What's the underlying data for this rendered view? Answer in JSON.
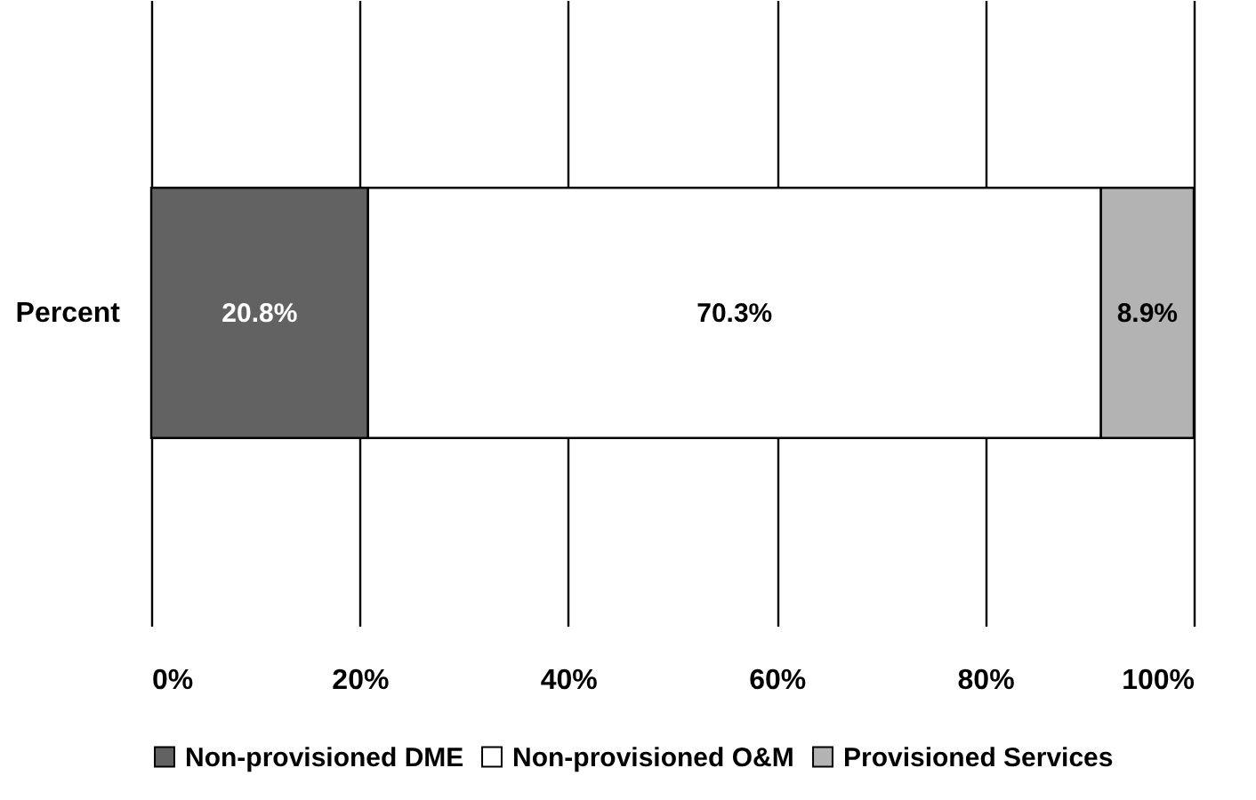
{
  "chart_data": {
    "type": "bar",
    "orientation": "horizontal",
    "stacked": true,
    "categories": [
      "Percent"
    ],
    "series": [
      {
        "name": "Non-provisioned DME",
        "color": "#626262",
        "values": [
          20.8
        ],
        "value_labels": [
          "20.8%"
        ]
      },
      {
        "name": "Non-provisioned O&M",
        "color": "#ffffff",
        "values": [
          70.3
        ],
        "value_labels": [
          "70.3%"
        ]
      },
      {
        "name": "Provisioned Services",
        "color": "#b3b3b3",
        "values": [
          8.9
        ],
        "value_labels": [
          "8.9%"
        ]
      }
    ],
    "xlim": [
      0,
      100
    ],
    "xticks": [
      {
        "value": 0,
        "label": "0%"
      },
      {
        "value": 20,
        "label": "20%"
      },
      {
        "value": 40,
        "label": "40%"
      },
      {
        "value": 60,
        "label": "60%"
      },
      {
        "value": 80,
        "label": "80%"
      },
      {
        "value": 100,
        "label": "100%"
      }
    ],
    "grid": "x",
    "legend": "bottom"
  }
}
